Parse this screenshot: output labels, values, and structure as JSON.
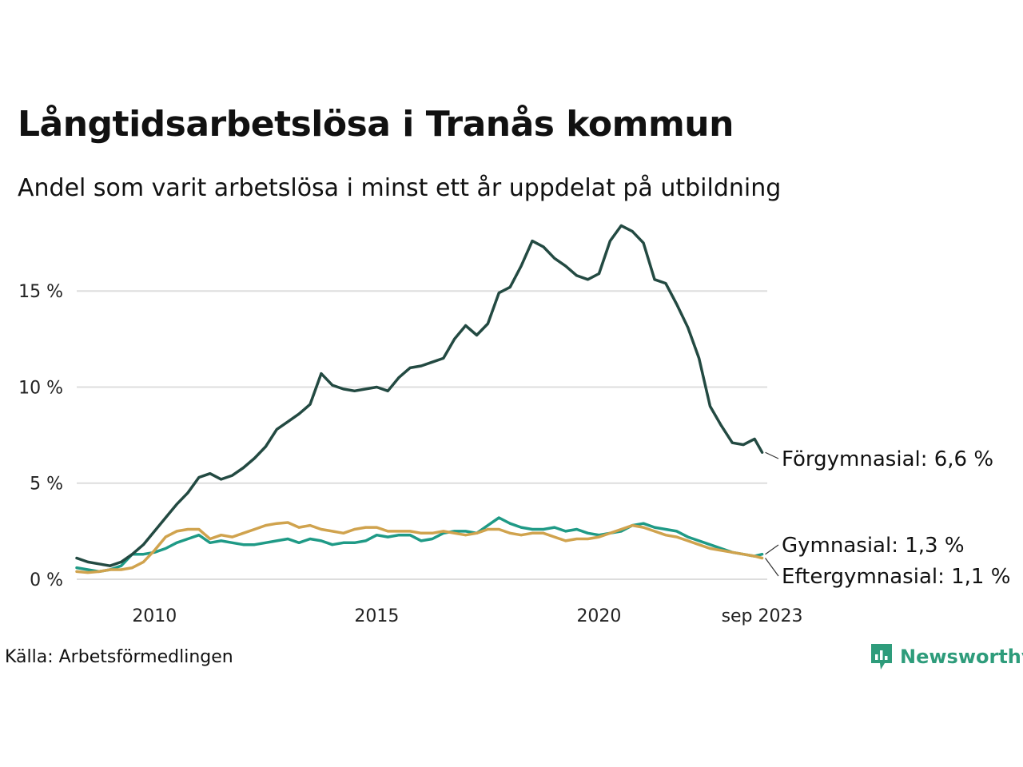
{
  "title": "Långtidsarbetslösa i Tranås kommun",
  "subtitle": "Andel som varit arbetslösa i minst ett år uppdelat på utbildning",
  "source": "Källa: Arbetsförmedlingen",
  "brand": "Newsworthy",
  "colors": {
    "Förgymnasial": "#234a42",
    "Gymnasial": "#1f9a86",
    "Eftergymnasial": "#d0a34e",
    "grid": "#dddddd",
    "brand": "#2e9c7b"
  },
  "chart_data": {
    "type": "line",
    "title": "Långtidsarbetslösa i Tranås kommun",
    "xlabel": "",
    "ylabel": "",
    "ylim": [
      0,
      18.5
    ],
    "xlim": [
      2008.25,
      2023.75
    ],
    "y_ticks": [
      0,
      5,
      10,
      15
    ],
    "y_tick_labels": [
      "0 %",
      "5 %",
      "10 %",
      "15 %"
    ],
    "x_ticks": [
      2010,
      2015,
      2020,
      2023.67
    ],
    "x_tick_labels": [
      "2010",
      "2015",
      "2020",
      "sep 2023"
    ],
    "grid": true,
    "series": [
      {
        "name": "Förgymnasial",
        "end_label": "Förgymnasial: 6,6 %",
        "x": [
          2008.25,
          2008.5,
          2008.75,
          2009.0,
          2009.25,
          2009.5,
          2009.75,
          2010.0,
          2010.25,
          2010.5,
          2010.75,
          2011.0,
          2011.25,
          2011.5,
          2011.75,
          2012.0,
          2012.25,
          2012.5,
          2012.75,
          2013.0,
          2013.25,
          2013.5,
          2013.75,
          2014.0,
          2014.25,
          2014.5,
          2014.75,
          2015.0,
          2015.25,
          2015.5,
          2015.75,
          2016.0,
          2016.25,
          2016.5,
          2016.75,
          2017.0,
          2017.25,
          2017.5,
          2017.75,
          2018.0,
          2018.25,
          2018.5,
          2018.75,
          2019.0,
          2019.25,
          2019.5,
          2019.75,
          2020.0,
          2020.25,
          2020.5,
          2020.75,
          2021.0,
          2021.25,
          2021.5,
          2021.75,
          2022.0,
          2022.25,
          2022.5,
          2022.75,
          2023.0,
          2023.25,
          2023.5,
          2023.67
        ],
        "values": [
          1.1,
          0.9,
          0.8,
          0.7,
          0.9,
          1.3,
          1.8,
          2.5,
          3.2,
          3.9,
          4.5,
          5.3,
          5.5,
          5.2,
          5.4,
          5.8,
          6.3,
          6.9,
          7.8,
          8.2,
          8.6,
          9.1,
          10.7,
          10.1,
          9.9,
          9.8,
          9.9,
          10.0,
          9.8,
          10.5,
          11.0,
          11.1,
          11.3,
          11.5,
          12.5,
          13.2,
          12.7,
          13.3,
          14.9,
          15.2,
          16.3,
          17.6,
          17.3,
          16.7,
          16.3,
          15.8,
          15.6,
          15.9,
          17.6,
          18.4,
          18.1,
          17.5,
          15.6,
          15.4,
          14.3,
          13.1,
          11.5,
          9.0,
          8.0,
          7.1,
          7.0,
          7.3,
          6.6
        ]
      },
      {
        "name": "Gymnasial",
        "end_label": "Gymnasial: 1,3 %",
        "x": [
          2008.25,
          2008.5,
          2008.75,
          2009.0,
          2009.25,
          2009.5,
          2009.75,
          2010.0,
          2010.25,
          2010.5,
          2010.75,
          2011.0,
          2011.25,
          2011.5,
          2011.75,
          2012.0,
          2012.25,
          2012.5,
          2012.75,
          2013.0,
          2013.25,
          2013.5,
          2013.75,
          2014.0,
          2014.25,
          2014.5,
          2014.75,
          2015.0,
          2015.25,
          2015.5,
          2015.75,
          2016.0,
          2016.25,
          2016.5,
          2016.75,
          2017.0,
          2017.25,
          2017.5,
          2017.75,
          2018.0,
          2018.25,
          2018.5,
          2018.75,
          2019.0,
          2019.25,
          2019.5,
          2019.75,
          2020.0,
          2020.25,
          2020.5,
          2020.75,
          2021.0,
          2021.25,
          2021.5,
          2021.75,
          2022.0,
          2022.25,
          2022.5,
          2022.75,
          2023.0,
          2023.25,
          2023.5,
          2023.67
        ],
        "values": [
          0.6,
          0.5,
          0.4,
          0.5,
          0.7,
          1.3,
          1.3,
          1.4,
          1.6,
          1.9,
          2.1,
          2.3,
          1.9,
          2.0,
          1.9,
          1.8,
          1.8,
          1.9,
          2.0,
          2.1,
          1.9,
          2.1,
          2.0,
          1.8,
          1.9,
          1.9,
          2.0,
          2.3,
          2.2,
          2.3,
          2.3,
          2.0,
          2.1,
          2.4,
          2.5,
          2.5,
          2.4,
          2.8,
          3.2,
          2.9,
          2.7,
          2.6,
          2.6,
          2.7,
          2.5,
          2.6,
          2.4,
          2.3,
          2.4,
          2.5,
          2.8,
          2.9,
          2.7,
          2.6,
          2.5,
          2.2,
          2.0,
          1.8,
          1.6,
          1.4,
          1.3,
          1.2,
          1.3
        ]
      },
      {
        "name": "Eftergymnasial",
        "end_label": "Eftergymnasial: 1,1 %",
        "x": [
          2008.25,
          2008.5,
          2008.75,
          2009.0,
          2009.25,
          2009.5,
          2009.75,
          2010.0,
          2010.25,
          2010.5,
          2010.75,
          2011.0,
          2011.25,
          2011.5,
          2011.75,
          2012.0,
          2012.25,
          2012.5,
          2012.75,
          2013.0,
          2013.25,
          2013.5,
          2013.75,
          2014.0,
          2014.25,
          2014.5,
          2014.75,
          2015.0,
          2015.25,
          2015.5,
          2015.75,
          2016.0,
          2016.25,
          2016.5,
          2016.75,
          2017.0,
          2017.25,
          2017.5,
          2017.75,
          2018.0,
          2018.25,
          2018.5,
          2018.75,
          2019.0,
          2019.25,
          2019.5,
          2019.75,
          2020.0,
          2020.25,
          2020.5,
          2020.75,
          2021.0,
          2021.25,
          2021.5,
          2021.75,
          2022.0,
          2022.25,
          2022.5,
          2022.75,
          2023.0,
          2023.25,
          2023.5,
          2023.67
        ],
        "values": [
          0.4,
          0.35,
          0.4,
          0.5,
          0.5,
          0.6,
          0.9,
          1.5,
          2.2,
          2.5,
          2.6,
          2.6,
          2.1,
          2.3,
          2.2,
          2.4,
          2.6,
          2.8,
          2.9,
          2.95,
          2.7,
          2.8,
          2.6,
          2.5,
          2.4,
          2.6,
          2.7,
          2.7,
          2.5,
          2.5,
          2.5,
          2.4,
          2.4,
          2.5,
          2.4,
          2.3,
          2.4,
          2.6,
          2.6,
          2.4,
          2.3,
          2.4,
          2.4,
          2.2,
          2.0,
          2.1,
          2.1,
          2.2,
          2.4,
          2.6,
          2.8,
          2.7,
          2.5,
          2.3,
          2.2,
          2.0,
          1.8,
          1.6,
          1.5,
          1.4,
          1.3,
          1.2,
          1.1
        ]
      }
    ]
  }
}
